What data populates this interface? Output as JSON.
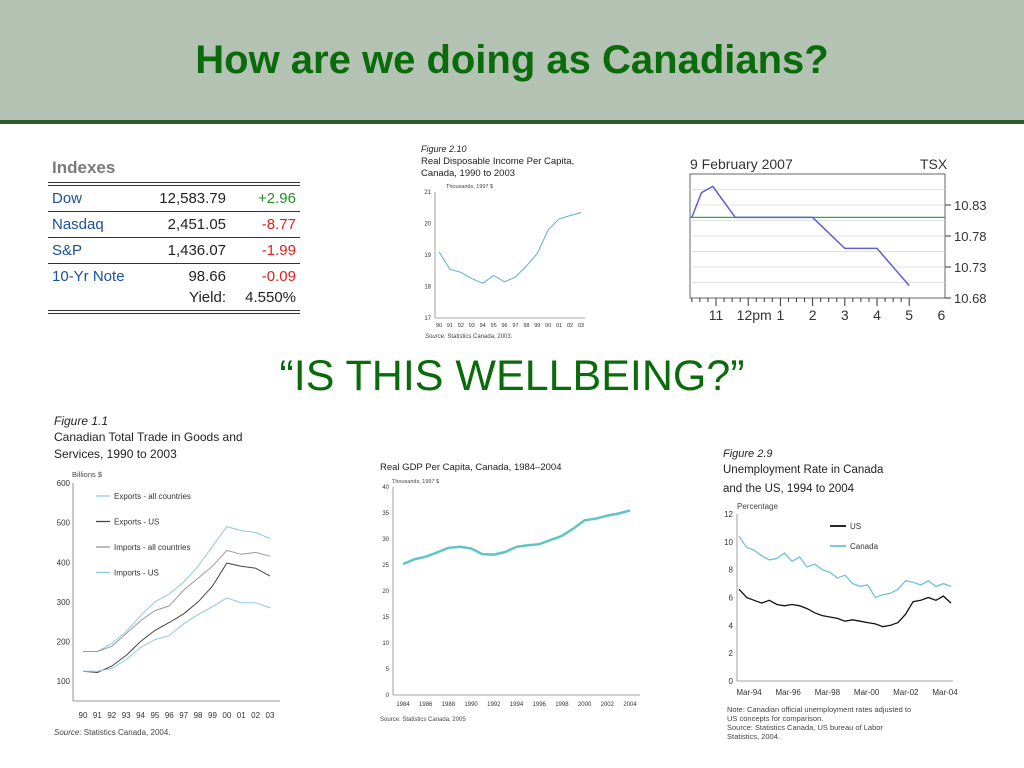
{
  "slide": {
    "title": "How are we doing as Canadians?",
    "subtitle": "“IS THIS WELLBEING?”"
  },
  "indexes": {
    "heading": "Indexes",
    "rows": [
      {
        "name": "Dow",
        "value": "12,583.79",
        "change": "+2.96",
        "change_color": "#2a8a2a"
      },
      {
        "name": "Nasdaq",
        "value": "2,451.05",
        "change": "-8.77",
        "change_color": "#e02020"
      },
      {
        "name": "S&P",
        "value": "1,436.07",
        "change": "-1.99",
        "change_color": "#e02020"
      },
      {
        "name": "10-Yr Note",
        "value": "98.66",
        "change": "-0.09",
        "change_color": "#e02020"
      }
    ],
    "yield_label": "Yield:",
    "yield_value": "4.550%"
  },
  "chart_data": [
    {
      "id": "income",
      "type": "line",
      "figure": "Figure 2.10",
      "title_lines": [
        "Real Disposable Income Per Capita,",
        "Canada, 1990 to 2003"
      ],
      "unit": "Thousands, 1997 $",
      "source_label": "Source:",
      "source_text": " Statistics Canada, 2003.",
      "categories": [
        "90",
        "91",
        "92",
        "93",
        "94",
        "95",
        "96",
        "97",
        "98",
        "99",
        "00",
        "01",
        "02",
        "03"
      ],
      "x": [
        1990,
        1991,
        1992,
        1993,
        1994,
        1995,
        1996,
        1997,
        1998,
        1999,
        2000,
        2001,
        2002,
        2003
      ],
      "yticks": [
        17,
        18,
        19,
        20,
        21
      ],
      "ylim": [
        17,
        21
      ],
      "series": [
        {
          "color": "#5ab0d0",
          "values": [
            19.1,
            18.55,
            18.45,
            18.25,
            18.1,
            18.35,
            18.15,
            18.3,
            18.65,
            19.05,
            19.8,
            20.15,
            20.25,
            20.35
          ]
        }
      ]
    },
    {
      "id": "tsx",
      "type": "line",
      "title": "9 February 2007",
      "label": "TSX",
      "xticks": [
        "11",
        "12pm",
        "1",
        "2",
        "3",
        "4",
        "5",
        "6"
      ],
      "ylim": [
        10.68,
        10.88
      ],
      "yticks": [
        10.83,
        10.78,
        10.73,
        10.68
      ],
      "reference_value": 10.81,
      "reference_color": "#33aa33",
      "series": [
        {
          "color": "#5e60d0",
          "points": [
            [
              10.25,
              10.81
            ],
            [
              10.55,
              10.85
            ],
            [
              10.9,
              10.86
            ],
            [
              11.6,
              10.81
            ],
            [
              14.0,
              10.81
            ],
            [
              15.0,
              10.76
            ],
            [
              16.0,
              10.76
            ],
            [
              17.0,
              10.7
            ]
          ]
        }
      ]
    },
    {
      "id": "trade",
      "type": "line",
      "figure": "Figure 1.1",
      "title_lines": [
        "Canadian Total Trade in Goods and",
        "Services, 1990 to 2003"
      ],
      "unit": "Billions $",
      "source_label": "Source:",
      "source_text": " Statistics Canada, 2004.",
      "categories": [
        "90",
        "91",
        "92",
        "93",
        "94",
        "95",
        "96",
        "97",
        "98",
        "99",
        "00",
        "01",
        "02",
        "03"
      ],
      "x": [
        1990,
        1991,
        1992,
        1993,
        1994,
        1995,
        1996,
        1997,
        1998,
        1999,
        2000,
        2001,
        2002,
        2003
      ],
      "yticks": [
        100,
        200,
        300,
        400,
        500,
        600
      ],
      "ylim": [
        50,
        600
      ],
      "series": [
        {
          "name": "Exports - all countries",
          "color": "#8ec8e0",
          "values": [
            175,
            175,
            195,
            225,
            265,
            300,
            320,
            350,
            390,
            440,
            490,
            480,
            475,
            460
          ]
        },
        {
          "name": "Exports - US",
          "color": "#444444",
          "values": [
            125,
            122,
            138,
            165,
            200,
            228,
            248,
            270,
            300,
            340,
            398,
            390,
            385,
            365
          ]
        },
        {
          "name": "Imports - all countries",
          "color": "#999999",
          "values": [
            175,
            175,
            188,
            220,
            252,
            278,
            290,
            330,
            360,
            390,
            430,
            420,
            425,
            415
          ]
        },
        {
          "name": "Imports - US",
          "color": "#8ec8e0",
          "values": [
            125,
            125,
            132,
            155,
            185,
            205,
            215,
            245,
            268,
            288,
            310,
            298,
            298,
            285
          ]
        }
      ]
    },
    {
      "id": "gdp",
      "type": "line",
      "title": "Real GDP Per Capita, Canada, 1984–2004",
      "unit": "Thousands, 1997 $",
      "source_text": "Source: Statistics Canada, 2005",
      "xticks": [
        "1984",
        "1986",
        "1988",
        "1990",
        "1992",
        "1994",
        "1996",
        "1998",
        "2000",
        "2002",
        "2004"
      ],
      "x": [
        1984,
        1985,
        1986,
        1987,
        1988,
        1989,
        1990,
        1991,
        1992,
        1993,
        1994,
        1995,
        1996,
        1997,
        1998,
        1999,
        2000,
        2001,
        2002,
        2003,
        2004
      ],
      "yticks": [
        0,
        5,
        10,
        15,
        20,
        25,
        30,
        35,
        40
      ],
      "ylim": [
        0,
        40
      ],
      "series": [
        {
          "color": "#5ec4c4",
          "values": [
            25.2,
            26.1,
            26.6,
            27.4,
            28.3,
            28.5,
            28.2,
            27.1,
            27.0,
            27.5,
            28.5,
            28.8,
            29.0,
            29.8,
            30.6,
            32.0,
            33.6,
            33.9,
            34.5,
            34.9,
            35.5
          ]
        }
      ]
    },
    {
      "id": "unemployment",
      "type": "line",
      "figure": "Figure 2.9",
      "title_lines": [
        "Unemployment Rate in Canada",
        "and the US, 1994 to 2004"
      ],
      "unit": "Percentage",
      "xticks": [
        "Mar-94",
        "Mar-96",
        "Mar-98",
        "Mar-00",
        "Mar-02",
        "Mar-04"
      ],
      "yticks": [
        0,
        2,
        4,
        6,
        8,
        10,
        12
      ],
      "ylim": [
        0,
        12
      ],
      "series": [
        {
          "name": "US",
          "color": "#111111",
          "values": [
            6.6,
            6.0,
            5.8,
            5.6,
            5.8,
            5.5,
            5.4,
            5.5,
            5.4,
            5.2,
            4.9,
            4.7,
            4.6,
            4.5,
            4.3,
            4.4,
            4.3,
            4.2,
            4.1,
            3.9,
            4.0,
            4.2,
            4.8,
            5.7,
            5.8,
            6.0,
            5.8,
            6.1,
            5.6
          ]
        },
        {
          "name": "Canada",
          "color": "#70c0d8",
          "values": [
            10.4,
            9.6,
            9.4,
            9.0,
            8.7,
            8.8,
            9.2,
            8.6,
            8.9,
            8.2,
            8.4,
            8.0,
            7.8,
            7.4,
            7.6,
            7.0,
            6.8,
            6.9,
            6.0,
            6.2,
            6.3,
            6.6,
            7.2,
            7.1,
            6.9,
            7.2,
            6.8,
            7.0,
            6.8
          ]
        }
      ],
      "notes": [
        "Note: Canadian official unemployment rates adjusted to",
        "US concepts for comparison.",
        "Source: Statistics Canada, US bureau of Labor",
        "Statistics, 2004."
      ]
    }
  ]
}
